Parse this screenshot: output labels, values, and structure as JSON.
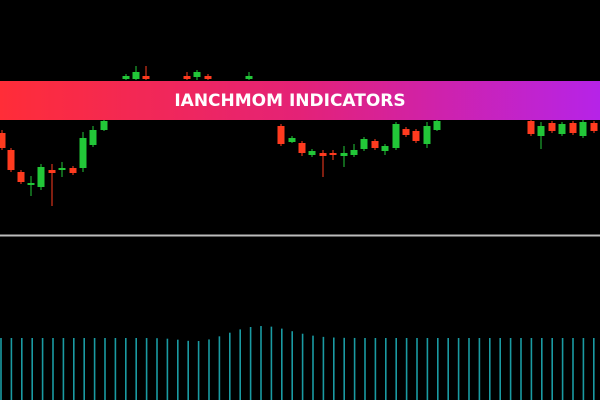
{
  "banner": {
    "title": "IANCHMOM INDICATORS"
  }
}
